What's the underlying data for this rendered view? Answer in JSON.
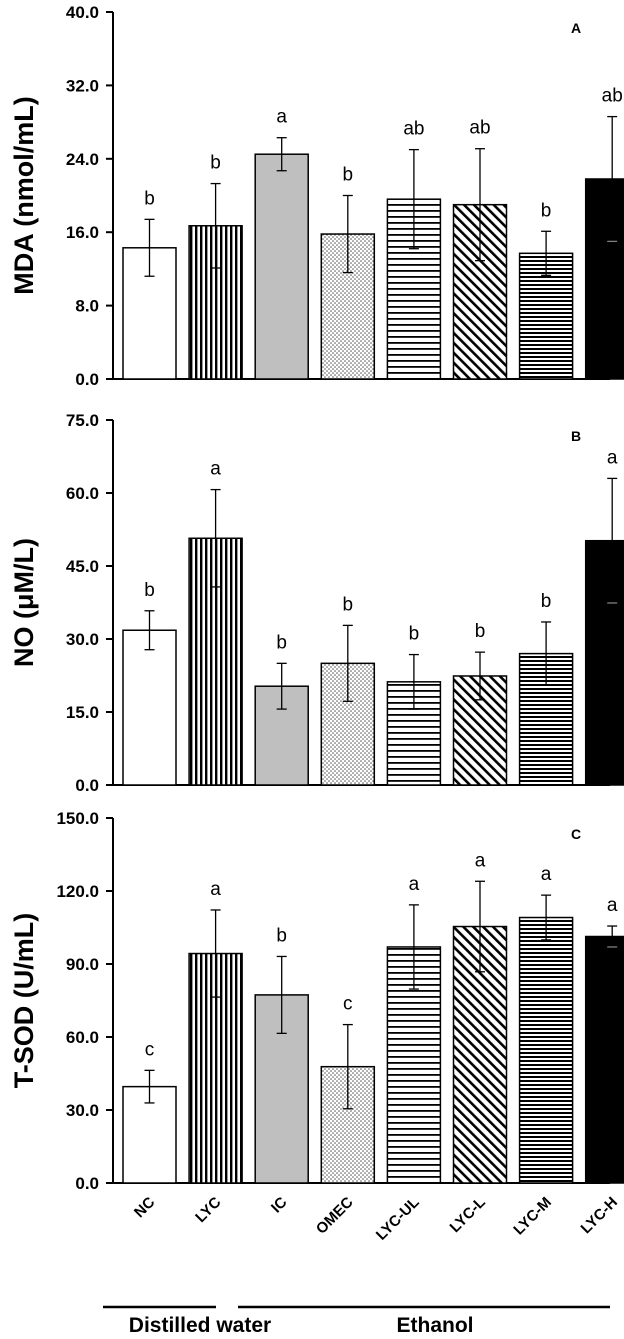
{
  "chart_data": [
    {
      "type": "bar",
      "panel": "A",
      "ylabel": "MDA (nmol/mL)",
      "ylim": [
        0,
        40
      ],
      "yticks": [
        "0.0",
        "8.0",
        "16.0",
        "24.0",
        "32.0",
        "40.0"
      ],
      "categories": [
        "NC",
        "LYC",
        "IC",
        "OMEC",
        "LYC-UL",
        "LYC-L",
        "LYC-M",
        "LYC-H"
      ],
      "values": [
        14.3,
        16.7,
        24.5,
        15.8,
        19.6,
        19.0,
        13.7,
        21.8
      ],
      "errors": [
        3.1,
        4.6,
        1.8,
        4.2,
        5.4,
        6.1,
        2.4,
        6.8
      ],
      "significance": [
        "b",
        "b",
        "a",
        "b",
        "ab",
        "ab",
        "b",
        "ab"
      ]
    },
    {
      "type": "bar",
      "panel": "B",
      "ylabel": "NO (μM/L)",
      "ylim": [
        0,
        75
      ],
      "yticks": [
        "0.0",
        "15.0",
        "30.0",
        "45.0",
        "60.0",
        "75.0"
      ],
      "categories": [
        "NC",
        "LYC",
        "IC",
        "OMEC",
        "LYC-UL",
        "LYC-L",
        "LYC-M",
        "LYC-H"
      ],
      "values": [
        31.8,
        50.7,
        20.3,
        25.0,
        21.2,
        22.4,
        27.0,
        50.2
      ],
      "errors": [
        4.0,
        10.0,
        4.7,
        7.8,
        5.6,
        4.9,
        6.5,
        12.8
      ],
      "significance": [
        "b",
        "a",
        "b",
        "b",
        "b",
        "b",
        "b",
        "a"
      ]
    },
    {
      "type": "bar",
      "panel": "C",
      "ylabel": "T-SOD (U/mL)",
      "ylim": [
        0,
        150
      ],
      "yticks": [
        "0.0",
        "30.0",
        "60.0",
        "90.0",
        "120.0",
        "150.0"
      ],
      "categories": [
        "NC",
        "LYC",
        "IC",
        "OMEC",
        "LYC-UL",
        "LYC-L",
        "LYC-M",
        "LYC-H"
      ],
      "values": [
        39.6,
        94.3,
        77.3,
        47.8,
        97.0,
        105.4,
        109.1,
        101.3
      ],
      "errors": [
        6.7,
        17.9,
        15.8,
        17.3,
        17.3,
        18.6,
        9.2,
        4.3
      ],
      "significance": [
        "c",
        "a",
        "b",
        "c",
        "a",
        "a",
        "a",
        "a"
      ]
    }
  ],
  "groups": [
    {
      "label": "Distilled water",
      "categories": [
        "NC",
        "LYC"
      ]
    },
    {
      "label": "Ethanol",
      "categories": [
        "IC",
        "OMEC",
        "LYC-UL",
        "LYC-L",
        "LYC-M",
        "LYC-H"
      ]
    }
  ],
  "patterns": [
    "white",
    "vertical-lines",
    "gray",
    "dots",
    "horizontal-lines",
    "diagonal-lines",
    "dense-horizontal-lines",
    "black"
  ]
}
